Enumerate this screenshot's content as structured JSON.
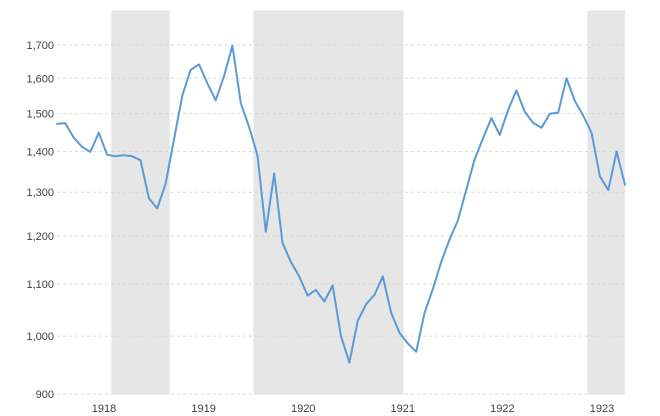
{
  "chart_data": {
    "type": "line",
    "title": "",
    "xlabel": "",
    "ylabel": "",
    "scale": "log",
    "ylim": [
      900,
      1700
    ],
    "grid": "dashed horizontal gridlines at each y tick",
    "legend": "none",
    "x_tick_labels": [
      "1918",
      "1919",
      "1920",
      "1921",
      "1922",
      "1923"
    ],
    "y_ticks": {
      "values": [
        900,
        1000,
        1100,
        1200,
        1300,
        1400,
        1500,
        1600,
        1700
      ],
      "labels": [
        "900",
        "1,000",
        "1,100",
        "1,200",
        "1,300",
        "1,400",
        "1,500",
        "1,600",
        "1,700"
      ]
    },
    "x_months": [
      "1918-01",
      "1918-02",
      "1918-03",
      "1918-04",
      "1918-05",
      "1918-06",
      "1918-07",
      "1918-08",
      "1918-09",
      "1918-10",
      "1918-11",
      "1918-12",
      "1919-01",
      "1919-02",
      "1919-03",
      "1919-04",
      "1919-05",
      "1919-06",
      "1919-07",
      "1919-08",
      "1919-09",
      "1919-10",
      "1919-11",
      "1919-12",
      "1920-01",
      "1920-02",
      "1920-03",
      "1920-04",
      "1920-05",
      "1920-06",
      "1920-07",
      "1920-08",
      "1920-09",
      "1920-10",
      "1920-11",
      "1920-12",
      "1921-01",
      "1921-02",
      "1921-03",
      "1921-04",
      "1921-05",
      "1921-06",
      "1921-07",
      "1921-08",
      "1921-09",
      "1921-10",
      "1921-11",
      "1921-12",
      "1922-01",
      "1922-02",
      "1922-03",
      "1922-04",
      "1922-05",
      "1922-06",
      "1922-07",
      "1922-08",
      "1922-09",
      "1922-10",
      "1922-11",
      "1922-12",
      "1923-01",
      "1923-02",
      "1923-03",
      "1923-04",
      "1923-05",
      "1923-06",
      "1923-07",
      "1923-08",
      "1923-09"
    ],
    "values": [
      1473,
      1474,
      1436,
      1412,
      1399,
      1449,
      1392,
      1388,
      1391,
      1388,
      1378,
      1286,
      1262,
      1320,
      1430,
      1550,
      1625,
      1641,
      1585,
      1537,
      1607,
      1698,
      1529,
      1464,
      1390,
      1210,
      1345,
      1185,
      1145,
      1115,
      1077,
      1088,
      1065,
      1097,
      1000,
      953,
      1028,
      1060,
      1078,
      1115,
      1044,
      1006,
      987,
      972,
      1043,
      1090,
      1145,
      1193,
      1235,
      1306,
      1380,
      1434,
      1488,
      1443,
      1510,
      1565,
      1505,
      1475,
      1462,
      1500,
      1503,
      1600,
      1535,
      1495,
      1448,
      1338,
      1305,
      1400,
      1318
    ],
    "shaded_bands": [
      {
        "from": "1918-08",
        "to": "1919-03"
      },
      {
        "from": "1920-01",
        "to": "1921-07"
      },
      {
        "from": "1923-05",
        "to": "1923-09"
      }
    ],
    "colors": {
      "line": "#5b9ad6",
      "band": "#e6e6e6",
      "grid": "#d9d9d9",
      "tick_text": "#404040"
    }
  }
}
